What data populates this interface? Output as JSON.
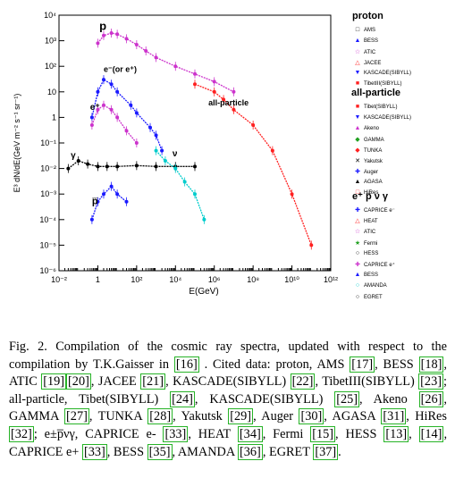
{
  "chart_data": {
    "type": "scatter",
    "xscale": "log",
    "yscale": "log",
    "xlim": [
      0.01,
      1000000000000.0
    ],
    "ylim": [
      1e-06,
      10000.0
    ],
    "xlabel": "E(GeV)",
    "ylabel": "E³ dN/dE(GeV m⁻² s⁻¹ sr⁻¹)",
    "x_ticks": [
      "10⁻²",
      "1",
      "10²",
      "10⁴",
      "10⁶",
      "10⁸",
      "10¹⁰",
      "10¹²"
    ],
    "y_ticks": [
      "10⁻⁶",
      "10⁻⁵",
      "10⁻⁴",
      "10⁻³",
      "10⁻²",
      "10⁻¹",
      "1",
      "10",
      "10²",
      "10³",
      "10⁴"
    ],
    "annotations": {
      "proton": "p",
      "electron": "e⁻(or e⁺)",
      "positron": "e⁺",
      "gamma": "γ",
      "antiproton": "p̅",
      "neutrino": "ν",
      "all_particle": "all-particle"
    },
    "legend_groups": [
      {
        "title": "proton",
        "entries": [
          {
            "name": "AMS",
            "color": "#000000",
            "marker": "□"
          },
          {
            "name": "BESS",
            "color": "#1a1aff",
            "marker": "▲"
          },
          {
            "name": "ATIC",
            "color": "#cc33cc",
            "marker": "☆"
          },
          {
            "name": "JACEE",
            "color": "#ff2020",
            "marker": "△"
          },
          {
            "name": "KASCADE(SIBYLL)",
            "color": "#1a1aff",
            "marker": "▼"
          },
          {
            "name": "TibetIII(SIBYLL)",
            "color": "#ff2020",
            "marker": "■"
          }
        ]
      },
      {
        "title": "all-particle",
        "entries": [
          {
            "name": "Tibet(SIBYLL)",
            "color": "#ff2020",
            "marker": "■"
          },
          {
            "name": "KASCADE(SIBYLL)",
            "color": "#1a1aff",
            "marker": "▼"
          },
          {
            "name": "Akeno",
            "color": "#cc33cc",
            "marker": "▲"
          },
          {
            "name": "GAMMA",
            "color": "#20a020",
            "marker": "◆"
          },
          {
            "name": "TUNKA",
            "color": "#ff2020",
            "marker": "◆"
          },
          {
            "name": "Yakutsk",
            "color": "#000000",
            "marker": "✕"
          },
          {
            "name": "Auger",
            "color": "#1a1aff",
            "marker": "✚"
          },
          {
            "name": "AGASA",
            "color": "#000000",
            "marker": "▲"
          },
          {
            "name": "HiRes",
            "color": "#ff2020",
            "marker": "□"
          }
        ]
      },
      {
        "title": "e⁺ p̅ ν γ",
        "entries": [
          {
            "name": "CAPRICE e⁻",
            "color": "#1a1aff",
            "marker": "✚"
          },
          {
            "name": "HEAT",
            "color": "#ff2020",
            "marker": "△"
          },
          {
            "name": "ATIC",
            "color": "#cc33cc",
            "marker": "☆"
          },
          {
            "name": "Fermi",
            "color": "#20a020",
            "marker": "★"
          },
          {
            "name": "HESS",
            "color": "#000000",
            "marker": "○"
          },
          {
            "name": "CAPRICE e⁺",
            "color": "#cc33cc",
            "marker": "✚"
          },
          {
            "name": "BESS",
            "color": "#1a1aff",
            "marker": "▲"
          },
          {
            "name": "AMANDA",
            "color": "#00cccc",
            "marker": "○"
          },
          {
            "name": "EGRET",
            "color": "#000000",
            "marker": "○"
          }
        ]
      }
    ],
    "series": [
      {
        "name": "proton",
        "color": "#cc33cc",
        "x": [
          1,
          2,
          5,
          10,
          30,
          100,
          300,
          1000,
          10000.0,
          100000.0,
          1000000.0,
          10000000.0
        ],
        "y": [
          800,
          1600,
          2000,
          1800,
          1200,
          700,
          400,
          220,
          100,
          50,
          25,
          10
        ]
      },
      {
        "name": "electron",
        "color": "#1a1aff",
        "x": [
          0.5,
          1,
          2,
          5,
          10,
          50,
          100,
          500,
          1000,
          2000
        ],
        "y": [
          1,
          10,
          30,
          20,
          10,
          3,
          1.5,
          0.4,
          0.2,
          0.05
        ]
      },
      {
        "name": "positron",
        "color": "#cc33cc",
        "x": [
          0.5,
          1,
          2,
          5,
          10,
          30,
          100
        ],
        "y": [
          0.5,
          2,
          3,
          2,
          1,
          0.3,
          0.1
        ]
      },
      {
        "name": "gamma",
        "color": "#000000",
        "x": [
          0.03,
          0.1,
          0.3,
          1,
          3,
          10,
          100,
          1000,
          10000.0,
          100000.0
        ],
        "y": [
          0.01,
          0.02,
          0.015,
          0.012,
          0.012,
          0.012,
          0.013,
          0.012,
          0.012,
          0.012
        ]
      },
      {
        "name": "antiproton",
        "color": "#1a1aff",
        "x": [
          0.5,
          1,
          2,
          5,
          10,
          30
        ],
        "y": [
          0.0001,
          0.0005,
          0.001,
          0.002,
          0.001,
          0.0005
        ]
      },
      {
        "name": "neutrino",
        "color": "#00cccc",
        "x": [
          1000,
          3000,
          10000.0,
          30000.0,
          100000.0,
          300000.0
        ],
        "y": [
          0.05,
          0.02,
          0.01,
          0.003,
          0.001,
          0.0001
        ]
      },
      {
        "name": "all-particle",
        "color": "#ff2020",
        "x": [
          100000.0,
          1000000.0,
          3000000.0,
          10000000.0,
          100000000.0,
          1000000000.0,
          10000000000.0,
          100000000000.0
        ],
        "y": [
          20,
          10,
          5,
          2,
          0.5,
          0.05,
          0.001,
          1e-05
        ]
      }
    ]
  },
  "caption": {
    "parts": [
      {
        "t": "Fig. 2.   Compilation of the cosmic ray spectra, updated with respect to the compilation by T.K.Gaisser in  "
      },
      {
        "r": "[16]"
      },
      {
        "t": " . Cited data: proton, AMS "
      },
      {
        "r": "[17]"
      },
      {
        "t": ", BESS "
      },
      {
        "r": "[18]"
      },
      {
        "t": ", ATIC "
      },
      {
        "r": "[19]"
      },
      {
        "r": "[20]"
      },
      {
        "t": ", JACEE "
      },
      {
        "r": "[21]"
      },
      {
        "t": ", KASCADE(SIBYLL) "
      },
      {
        "r": "[22]"
      },
      {
        "t": ", TibetIII(SIBYLL) "
      },
      {
        "r": "[23]"
      },
      {
        "t": "; all-particle, Tibet(SIBYLL) "
      },
      {
        "r": "[24]"
      },
      {
        "t": ", KASCADE(SIBYLL) "
      },
      {
        "r": "[25]"
      },
      {
        "t": ", Akeno "
      },
      {
        "r": "[26]"
      },
      {
        "t": ", GAMMA "
      },
      {
        "r": "[27]"
      },
      {
        "t": ", TUNKA "
      },
      {
        "r": "[28]"
      },
      {
        "t": ", Yakutsk "
      },
      {
        "r": "[29]"
      },
      {
        "t": ", Auger "
      },
      {
        "r": "[30]"
      },
      {
        "t": ", AGASA "
      },
      {
        "r": "[31]"
      },
      {
        "t": ", HiRes "
      },
      {
        "r": "[32]"
      },
      {
        "t": "; e±p̅νγ, CAPRICE e- "
      },
      {
        "r": "[33]"
      },
      {
        "t": ", HEAT "
      },
      {
        "r": "[34]"
      },
      {
        "t": ", Fermi "
      },
      {
        "r": "[15]"
      },
      {
        "t": ", HESS "
      },
      {
        "r": "[13]"
      },
      {
        "t": ", "
      },
      {
        "r": "[14]"
      },
      {
        "t": ", CAPRICE e+ "
      },
      {
        "r": "[33]"
      },
      {
        "t": ", BESS "
      },
      {
        "r": "[35]"
      },
      {
        "t": ", AMANDA "
      },
      {
        "r": "[36]"
      },
      {
        "t": ", EGRET "
      },
      {
        "r": "[37]"
      },
      {
        "t": "."
      }
    ]
  }
}
